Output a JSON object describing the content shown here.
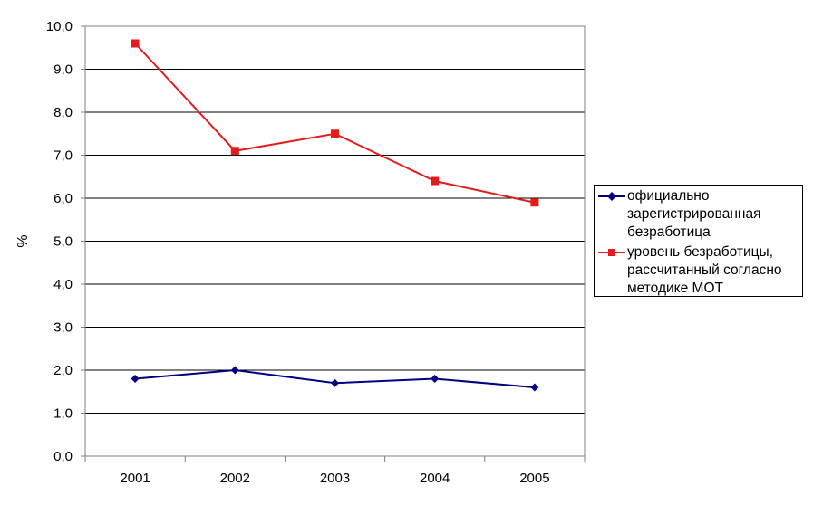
{
  "chart_data": {
    "type": "line",
    "categories": [
      "2001",
      "2002",
      "2003",
      "2004",
      "2005"
    ],
    "ylabel": "%",
    "xlabel": "",
    "ylim": [
      0,
      10
    ],
    "yticks": [
      "0,0",
      "1,0",
      "2,0",
      "3,0",
      "4,0",
      "5,0",
      "6,0",
      "7,0",
      "8,0",
      "9,0",
      "10,0"
    ],
    "grid": "horizontal",
    "legend_position": "right",
    "series": [
      {
        "name": "официально зарегистрированная безработица",
        "name_lines": [
          "официально",
          "зарегистрированная",
          "безработица"
        ],
        "values": [
          1.8,
          2.0,
          1.7,
          1.8,
          1.6
        ],
        "color": "#000080",
        "marker": "diamond"
      },
      {
        "name": "уровень безработицы, рассчитанный согласно методике МОТ",
        "name_lines": [
          "уровень безработицы,",
          "рассчитанный согласно",
          "методике МОТ"
        ],
        "values": [
          9.6,
          7.1,
          7.5,
          6.4,
          5.9
        ],
        "color": "#e41a1c",
        "marker": "square"
      }
    ]
  }
}
